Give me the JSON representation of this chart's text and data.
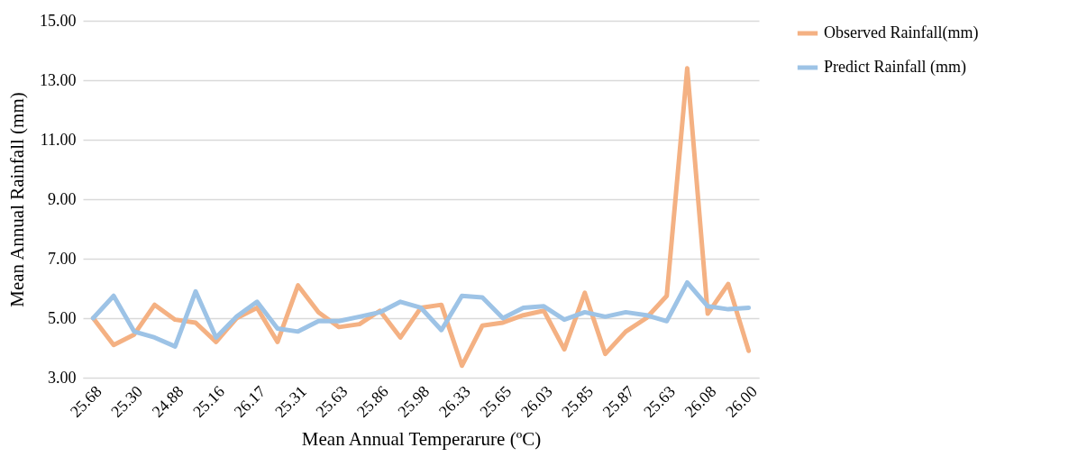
{
  "chart_data": {
    "type": "line",
    "xlabel": "Mean Annual Temperarure (ºC)",
    "ylabel": "Mean Annual Rainfall (mm)",
    "categories": [
      "25.68",
      null,
      "25.30",
      null,
      "24.88",
      null,
      "25.16",
      null,
      "26.17",
      null,
      "25.31",
      null,
      "25.63",
      null,
      "25.86",
      null,
      "25.98",
      null,
      "26.33",
      null,
      "25.65",
      null,
      "26.03",
      null,
      "25.85",
      null,
      "25.87",
      null,
      "25.63",
      null,
      "26.08",
      null,
      "26.00"
    ],
    "series": [
      {
        "name": "Observed Rainfall(mm)",
        "color": "#f4b183",
        "values": [
          5.0,
          4.1,
          4.45,
          5.45,
          4.95,
          4.85,
          4.2,
          5.0,
          5.35,
          4.2,
          6.1,
          5.2,
          4.7,
          4.8,
          5.25,
          4.35,
          5.35,
          5.45,
          3.4,
          4.75,
          4.85,
          5.1,
          5.25,
          3.95,
          5.85,
          3.8,
          4.55,
          5.0,
          5.75,
          13.4,
          5.15,
          6.15,
          3.9
        ]
      },
      {
        "name": "Predict Rainfall (mm)",
        "color": "#9dc3e6",
        "values": [
          5.0,
          5.75,
          4.55,
          4.35,
          4.05,
          5.9,
          4.35,
          5.05,
          5.55,
          4.65,
          4.55,
          4.9,
          4.9,
          5.05,
          5.2,
          5.55,
          5.35,
          4.6,
          5.75,
          5.7,
          5.0,
          5.35,
          5.4,
          4.95,
          5.2,
          5.05,
          5.2,
          5.1,
          4.9,
          6.2,
          5.4,
          5.3,
          5.35
        ]
      }
    ],
    "ylim": [
      3,
      15
    ],
    "yticks": [
      {
        "value": 3,
        "label": "3.00"
      },
      {
        "value": 5,
        "label": "5.00"
      },
      {
        "value": 7,
        "label": "7.00"
      },
      {
        "value": 9,
        "label": "9.00"
      },
      {
        "value": 11,
        "label": "11.00"
      },
      {
        "value": 13,
        "label": "13.00"
      },
      {
        "value": 15,
        "label": "15.00"
      }
    ],
    "grid": "y",
    "legend": "right",
    "line_style": "solid",
    "marker": "none"
  }
}
